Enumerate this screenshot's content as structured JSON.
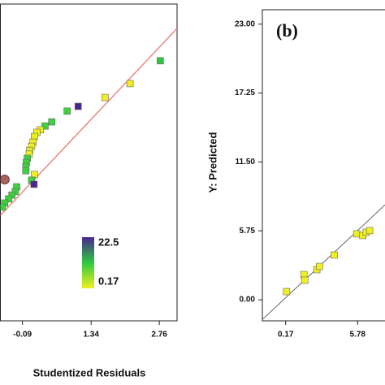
{
  "chart_data": [
    {
      "type": "scatter",
      "xlabel": "Studentized Residuals",
      "x": [
        2.78,
        2.15,
        1.63,
        1.07,
        0.84,
        0.52,
        0.38,
        0.28,
        0.21,
        0.16,
        0.13,
        0.1,
        0.06,
        0.05,
        0.01,
        -0.01,
        -0.02,
        -0.02,
        0.16,
        0.1,
        0.15,
        -0.21,
        -0.24,
        -0.31,
        -0.38,
        -0.46,
        -0.51
      ],
      "values": [
        82.1,
        74.9,
        70.5,
        67.7,
        66.2,
        62.8,
        61.5,
        60.3,
        59.5,
        58.2,
        56.4,
        55.1,
        53.8,
        52.6,
        51.3,
        50.0,
        48.7,
        47.4,
        46.2,
        44.4,
        43.1,
        42.3,
        40.8,
        39.7,
        38.5,
        37.2,
        35.9
      ],
      "colors": [
        "#2ec840",
        "#f0f020",
        "#f0f020",
        "#4a2690",
        "#3cd23c",
        "#3cd23c",
        "#3cd23c",
        "#f0f020",
        "#f0f020",
        "#e8f020",
        "#f0f020",
        "#f0f020",
        "#e0f020",
        "#f0f020",
        "#3cd23c",
        "#3cd23c",
        "#3cd23c",
        "#3cd23c",
        "#f0f020",
        "#3cd23c",
        "#4a2690",
        "#3cd23c",
        "#3cd23c",
        "#3cd23c",
        "#3cd23c",
        "#3cd23c",
        "#3cd23c"
      ],
      "highlight": {
        "x": -0.46,
        "y": 44.6,
        "color": "#a8645a"
      },
      "fit_line": {
        "x": [
          -0.55,
          3.13
        ],
        "y": [
          33.3,
          92.3
        ],
        "color": "#e88a80"
      },
      "xlim": [
        -0.55,
        3.13
      ],
      "ylim": [
        0,
        100
      ],
      "xticks": [
        -0.09,
        1.34,
        2.76
      ],
      "colorbar": {
        "max": 22.5,
        "min": 0.17,
        "colors": [
          "#4a2690",
          "#2ec840",
          "#f0f020"
        ]
      }
    },
    {
      "type": "scatter",
      "title": "(b)",
      "ylabel": "Y: Predicted",
      "x": [
        0.24,
        1.59,
        1.66,
        2.6,
        2.81,
        3.95,
        5.71,
        6.18,
        6.45,
        6.72
      ],
      "values": [
        0.68,
        2.1,
        1.63,
        2.51,
        2.78,
        3.73,
        5.5,
        5.36,
        5.63,
        5.77
      ],
      "color": "#f0f020",
      "xlim": [
        -1.65,
        8.55
      ],
      "ylim": [
        -1.76,
        24.2
      ],
      "xticks": [
        0.17,
        5.78
      ],
      "yticks": [
        {
          "value": 0,
          "label": "0.00"
        },
        {
          "value": 5.75,
          "label": "5.75"
        },
        {
          "value": 11.5,
          "label": "11.50"
        },
        {
          "value": 17.25,
          "label": "17.25"
        },
        {
          "value": 23,
          "label": "23.00"
        }
      ]
    }
  ]
}
